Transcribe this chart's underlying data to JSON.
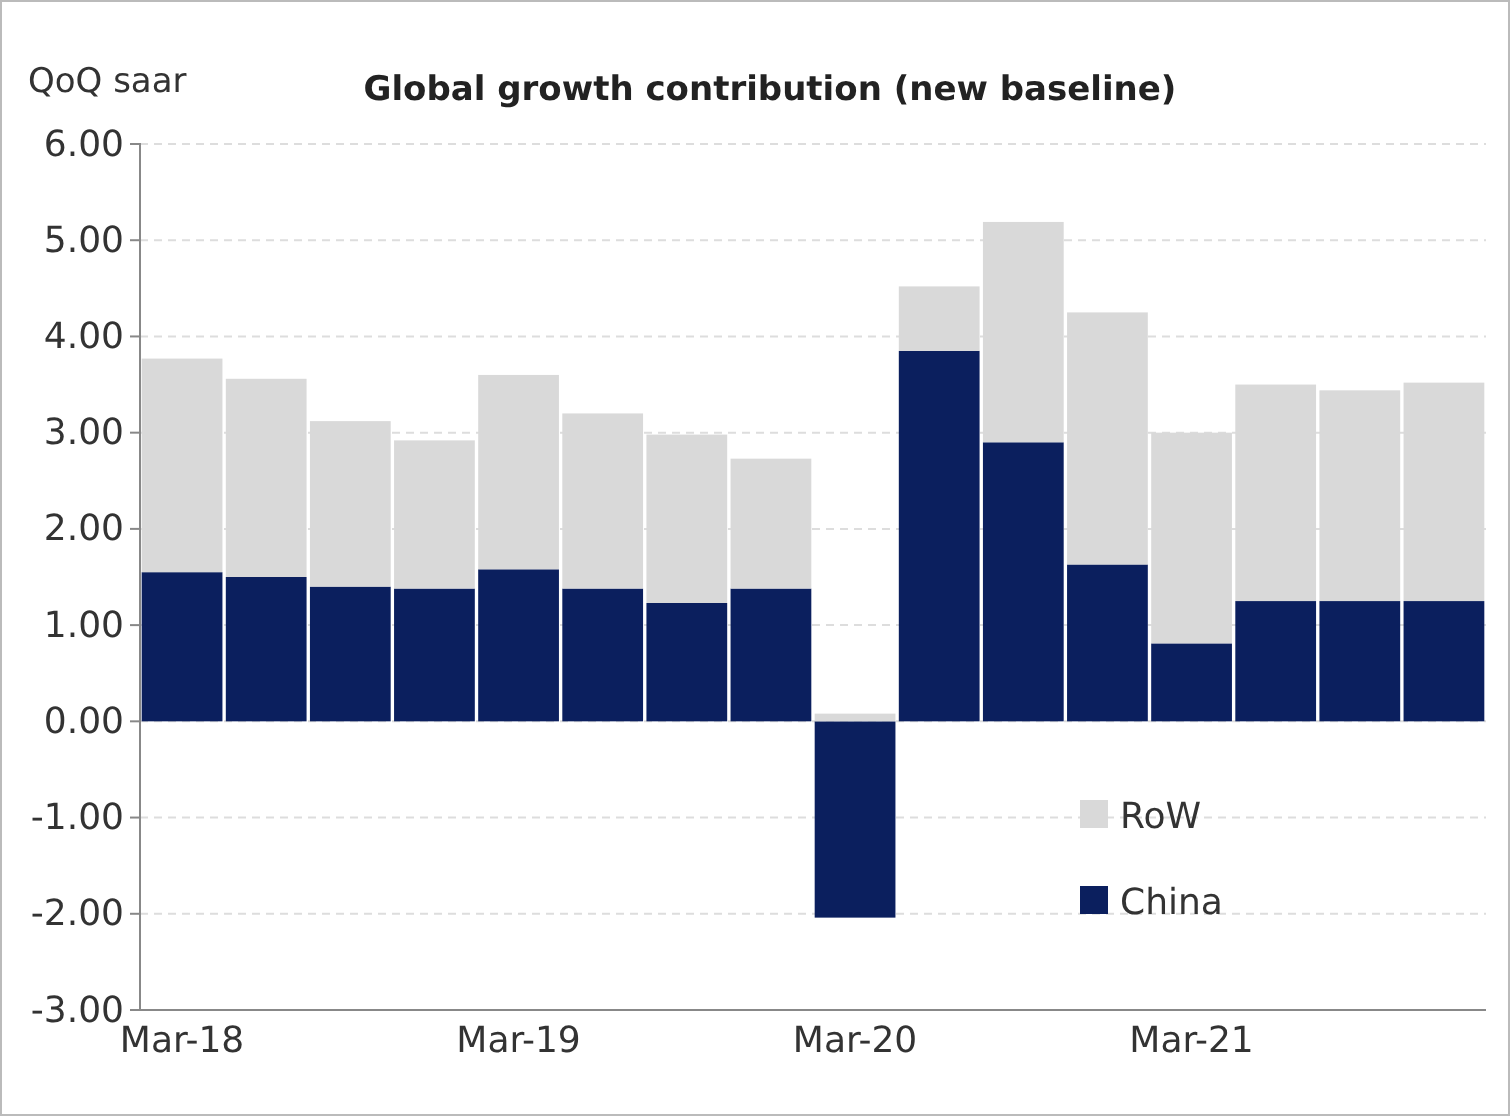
{
  "chart_data": {
    "type": "bar",
    "title": "Global growth contribution (new baseline)",
    "ylabel": "QoQ saar",
    "stacked": true,
    "categories": [
      "Mar-18",
      null,
      null,
      null,
      "Mar-19",
      null,
      null,
      null,
      "Mar-20",
      null,
      null,
      null,
      "Mar-21",
      null,
      null,
      null
    ],
    "series": [
      {
        "name": "China",
        "color": "#0b1f5e",
        "values": [
          1.55,
          1.5,
          1.4,
          1.38,
          1.58,
          1.38,
          1.23,
          1.38,
          -2.04,
          3.85,
          2.9,
          1.63,
          0.81,
          1.25,
          1.25,
          1.25
        ]
      },
      {
        "name": "RoW",
        "color": "#d9d9d9",
        "values": [
          2.22,
          2.06,
          1.72,
          1.54,
          2.02,
          1.82,
          1.75,
          1.35,
          0.08,
          0.67,
          2.29,
          2.62,
          2.19,
          2.25,
          2.19,
          2.27
        ]
      }
    ],
    "ylim": [
      -3,
      6
    ],
    "yticks": [
      {
        "value": -3,
        "label": "-3.00"
      },
      {
        "value": -2,
        "label": "-2.00"
      },
      {
        "value": -1,
        "label": "-1.00"
      },
      {
        "value": 0,
        "label": "0.00"
      },
      {
        "value": 1,
        "label": "1.00"
      },
      {
        "value": 2,
        "label": "2.00"
      },
      {
        "value": 3,
        "label": "3.00"
      },
      {
        "value": 4,
        "label": "4.00"
      },
      {
        "value": 5,
        "label": "5.00"
      },
      {
        "value": 6,
        "label": "6.00"
      }
    ],
    "grid": "y",
    "legend": "bottom right"
  }
}
